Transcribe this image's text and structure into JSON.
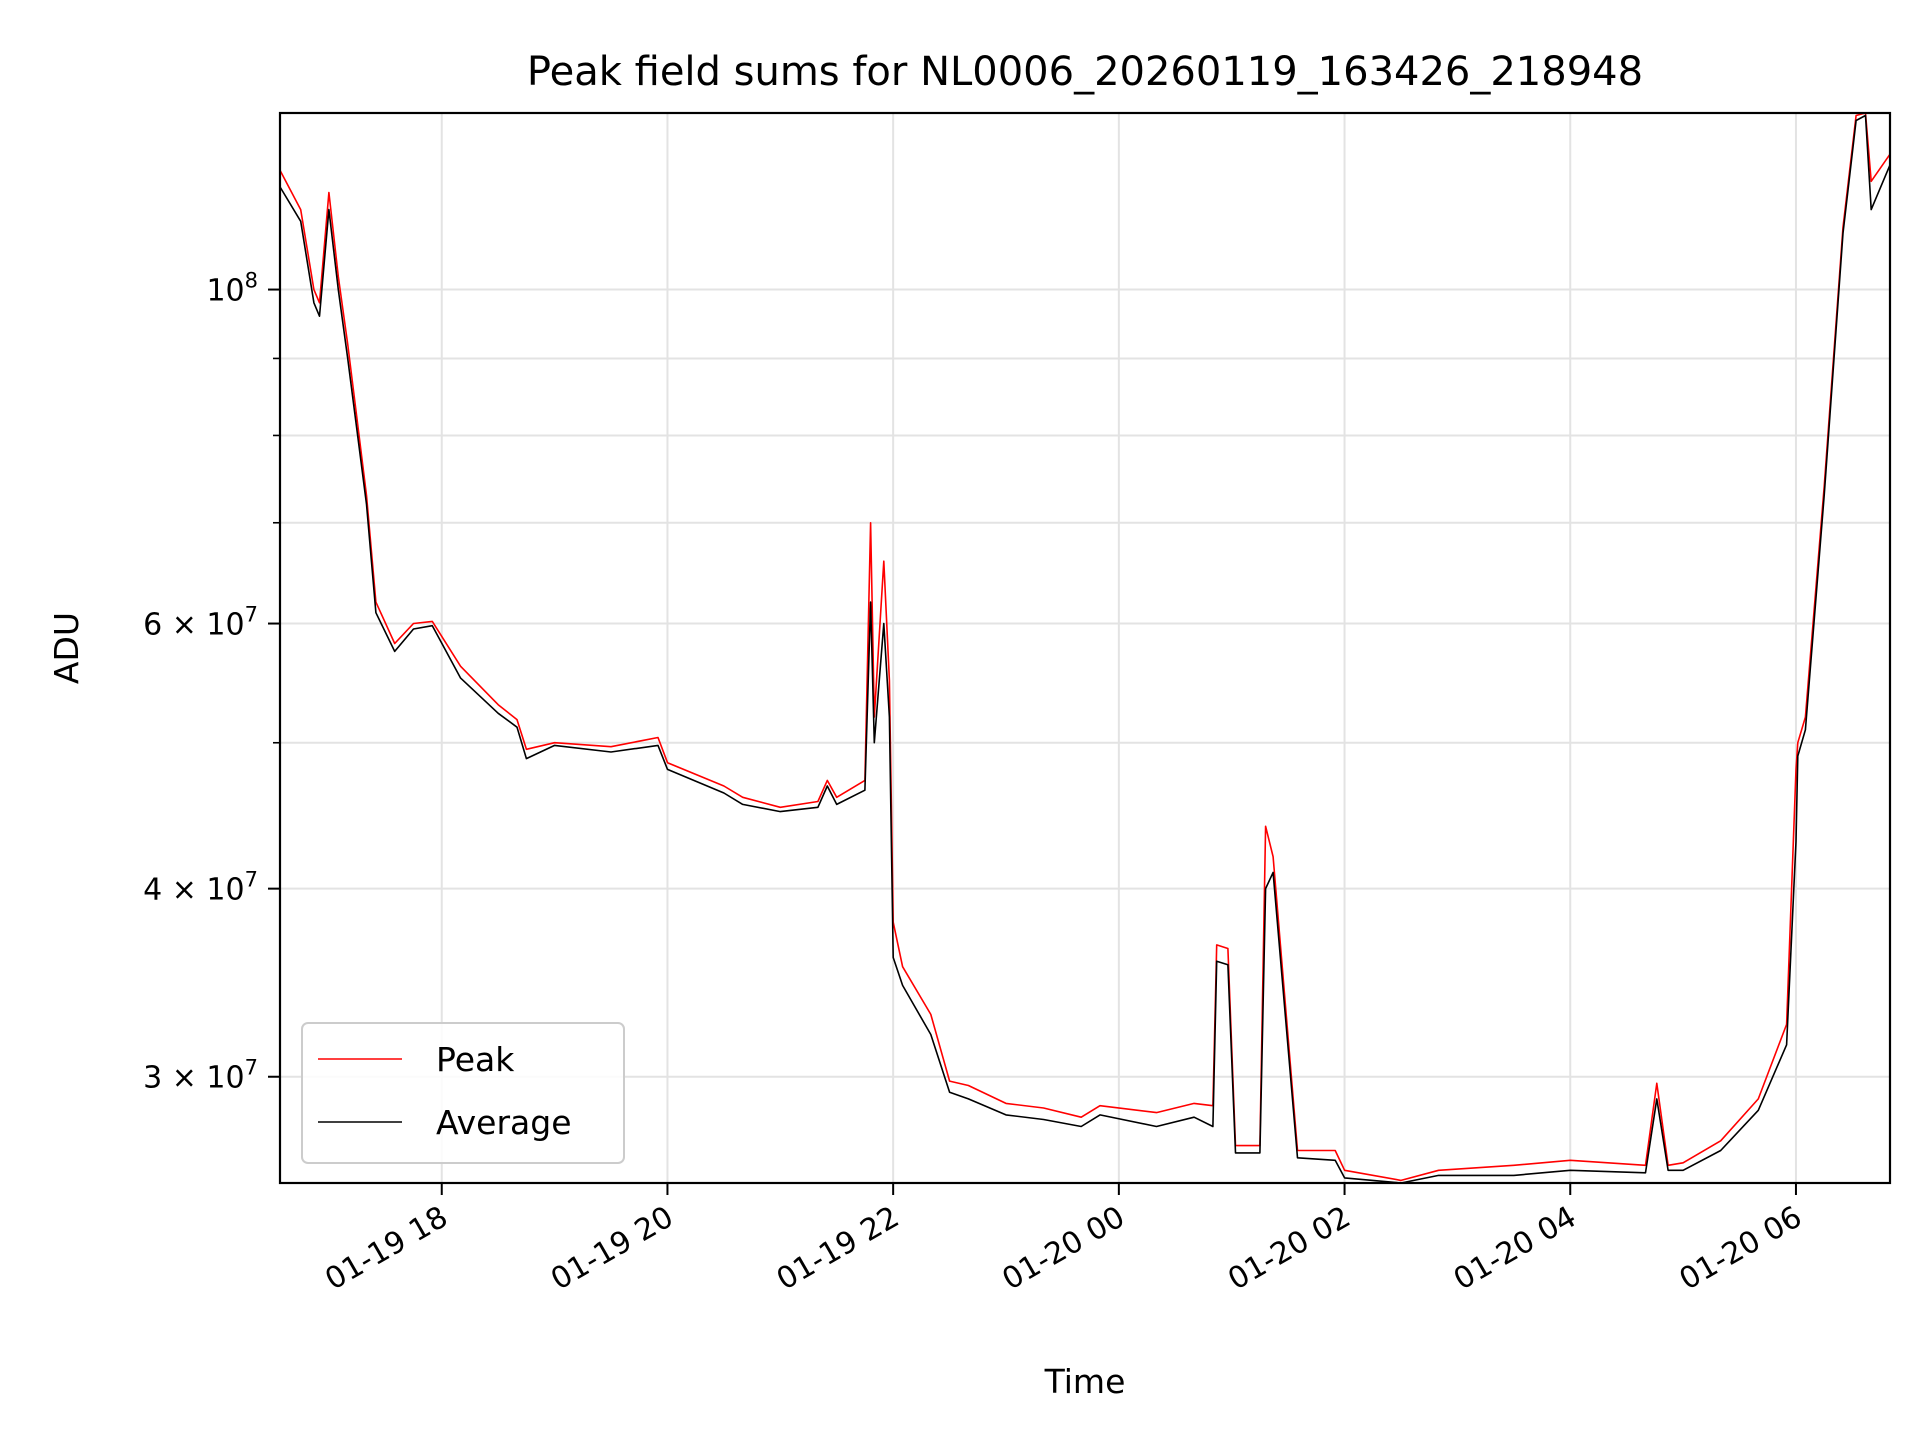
{
  "chart_data": {
    "type": "line",
    "title": "Peak field sums for NL0006_20260119_163426_218948",
    "xlabel": "Time",
    "ylabel": "ADU",
    "x_unit": "time (YYYY-MM-DD HH:MM)",
    "yscale": "log",
    "ylim": [
      25500000,
      131000000
    ],
    "xlim": [
      "2026-01-19 16:34",
      "2026-01-20 06:50"
    ],
    "grid": true,
    "legend_position": "lower-left",
    "x_ticks": [
      {
        "value": "2026-01-19 18:00",
        "label": "01-19 18"
      },
      {
        "value": "2026-01-19 20:00",
        "label": "01-19 20"
      },
      {
        "value": "2026-01-19 22:00",
        "label": "01-19 22"
      },
      {
        "value": "2026-01-20 00:00",
        "label": "01-20 00"
      },
      {
        "value": "2026-01-20 02:00",
        "label": "01-20 02"
      },
      {
        "value": "2026-01-20 04:00",
        "label": "01-20 04"
      },
      {
        "value": "2026-01-20 06:00",
        "label": "01-20 06"
      }
    ],
    "y_major_ticks": [
      {
        "value": 100000000,
        "base": "10",
        "exp": "8",
        "mant": ""
      },
      {
        "value": 60000000,
        "base": "10",
        "exp": "7",
        "mant": "6 × "
      },
      {
        "value": 40000000,
        "base": "10",
        "exp": "7",
        "mant": "4 × "
      },
      {
        "value": 30000000,
        "base": "10",
        "exp": "7",
        "mant": "3 × "
      }
    ],
    "y_minor_ticks": [
      50000000,
      70000000,
      80000000,
      90000000
    ],
    "series": [
      {
        "name": "Peak",
        "color": "#ff0000",
        "x": [
          "2026-01-19 16:34",
          "2026-01-19 16:45",
          "2026-01-19 16:52",
          "2026-01-19 16:55",
          "2026-01-19 17:00",
          "2026-01-19 17:05",
          "2026-01-19 17:10",
          "2026-01-19 17:20",
          "2026-01-19 17:25",
          "2026-01-19 17:35",
          "2026-01-19 17:45",
          "2026-01-19 17:55",
          "2026-01-19 18:10",
          "2026-01-19 18:30",
          "2026-01-19 18:40",
          "2026-01-19 18:45",
          "2026-01-19 19:00",
          "2026-01-19 19:30",
          "2026-01-19 19:55",
          "2026-01-19 20:00",
          "2026-01-19 20:30",
          "2026-01-19 20:40",
          "2026-01-19 21:00",
          "2026-01-19 21:20",
          "2026-01-19 21:25",
          "2026-01-19 21:30",
          "2026-01-19 21:45",
          "2026-01-19 21:48",
          "2026-01-19 21:50",
          "2026-01-19 21:55",
          "2026-01-19 21:58",
          "2026-01-19 22:00",
          "2026-01-19 22:05",
          "2026-01-19 22:20",
          "2026-01-19 22:30",
          "2026-01-19 22:40",
          "2026-01-19 23:00",
          "2026-01-19 23:20",
          "2026-01-19 23:40",
          "2026-01-19 23:50",
          "2026-01-20 00:20",
          "2026-01-20 00:40",
          "2026-01-20 00:50",
          "2026-01-20 00:52",
          "2026-01-20 00:58",
          "2026-01-20 01:02",
          "2026-01-20 01:15",
          "2026-01-20 01:18",
          "2026-01-20 01:22",
          "2026-01-20 01:35",
          "2026-01-20 01:55",
          "2026-01-20 02:00",
          "2026-01-20 02:30",
          "2026-01-20 02:50",
          "2026-01-20 03:30",
          "2026-01-20 04:00",
          "2026-01-20 04:40",
          "2026-01-20 04:46",
          "2026-01-20 04:52",
          "2026-01-20 05:00",
          "2026-01-20 05:20",
          "2026-01-20 05:40",
          "2026-01-20 05:55",
          "2026-01-20 06:00",
          "2026-01-20 06:01",
          "2026-01-20 06:05",
          "2026-01-20 06:15",
          "2026-01-20 06:25",
          "2026-01-20 06:32",
          "2026-01-20 06:37",
          "2026-01-20 06:40",
          "2026-01-20 06:50"
        ],
        "values": [
          120000000,
          113000000,
          100000000,
          98000000,
          116000000,
          102000000,
          92000000,
          73000000,
          62000000,
          58200000,
          60000000,
          60200000,
          56200000,
          53000000,
          51800000,
          49500000,
          50000000,
          49700000,
          50400000,
          48500000,
          46800000,
          46000000,
          45300000,
          45700000,
          47200000,
          46000000,
          47200000,
          70000000,
          52000000,
          66000000,
          55000000,
          38000000,
          35500000,
          33000000,
          29800000,
          29600000,
          28800000,
          28600000,
          28200000,
          28700000,
          28400000,
          28800000,
          28700000,
          36700000,
          36500000,
          27000000,
          27000000,
          44000000,
          42000000,
          26800000,
          26800000,
          26000000,
          25600000,
          26000000,
          26200000,
          26400000,
          26200000,
          29700000,
          26200000,
          26300000,
          27200000,
          29000000,
          32500000,
          48000000,
          50000000,
          52000000,
          74000000,
          110000000,
          130500000,
          131000000,
          118000000,
          123000000
        ]
      },
      {
        "name": "Average",
        "color": "#000000",
        "x": [
          "2026-01-19 16:34",
          "2026-01-19 16:45",
          "2026-01-19 16:52",
          "2026-01-19 16:55",
          "2026-01-19 17:00",
          "2026-01-19 17:05",
          "2026-01-19 17:10",
          "2026-01-19 17:20",
          "2026-01-19 17:25",
          "2026-01-19 17:35",
          "2026-01-19 17:45",
          "2026-01-19 17:55",
          "2026-01-19 18:10",
          "2026-01-19 18:30",
          "2026-01-19 18:40",
          "2026-01-19 18:45",
          "2026-01-19 19:00",
          "2026-01-19 19:30",
          "2026-01-19 19:55",
          "2026-01-19 20:00",
          "2026-01-19 20:30",
          "2026-01-19 20:40",
          "2026-01-19 21:00",
          "2026-01-19 21:20",
          "2026-01-19 21:25",
          "2026-01-19 21:30",
          "2026-01-19 21:45",
          "2026-01-19 21:48",
          "2026-01-19 21:50",
          "2026-01-19 21:55",
          "2026-01-19 21:58",
          "2026-01-19 22:00",
          "2026-01-19 22:05",
          "2026-01-19 22:20",
          "2026-01-19 22:30",
          "2026-01-19 22:40",
          "2026-01-19 23:00",
          "2026-01-19 23:20",
          "2026-01-19 23:40",
          "2026-01-19 23:50",
          "2026-01-20 00:20",
          "2026-01-20 00:40",
          "2026-01-20 00:50",
          "2026-01-20 00:52",
          "2026-01-20 00:58",
          "2026-01-20 01:02",
          "2026-01-20 01:15",
          "2026-01-20 01:18",
          "2026-01-20 01:22",
          "2026-01-20 01:35",
          "2026-01-20 01:55",
          "2026-01-20 02:00",
          "2026-01-20 02:30",
          "2026-01-20 02:50",
          "2026-01-20 03:30",
          "2026-01-20 04:00",
          "2026-01-20 04:40",
          "2026-01-20 04:46",
          "2026-01-20 04:52",
          "2026-01-20 05:00",
          "2026-01-20 05:20",
          "2026-01-20 05:40",
          "2026-01-20 05:55",
          "2026-01-20 06:00",
          "2026-01-20 06:01",
          "2026-01-20 06:05",
          "2026-01-20 06:15",
          "2026-01-20 06:25",
          "2026-01-20 06:32",
          "2026-01-20 06:37",
          "2026-01-20 06:40",
          "2026-01-20 06:50"
        ],
        "values": [
          117000000,
          111000000,
          98000000,
          96000000,
          113000000,
          100000000,
          90000000,
          72000000,
          61000000,
          57500000,
          59500000,
          59800000,
          55200000,
          52300000,
          51200000,
          48800000,
          49800000,
          49300000,
          49800000,
          48000000,
          46300000,
          45500000,
          45000000,
          45300000,
          46800000,
          45500000,
          46500000,
          62000000,
          50000000,
          60000000,
          52000000,
          36000000,
          34500000,
          32000000,
          29300000,
          29000000,
          28300000,
          28100000,
          27800000,
          28300000,
          27800000,
          28200000,
          27800000,
          35800000,
          35600000,
          26700000,
          26700000,
          40000000,
          41000000,
          26500000,
          26400000,
          25700000,
          25500000,
          25800000,
          25800000,
          26000000,
          25900000,
          29000000,
          26000000,
          26000000,
          26800000,
          28500000,
          31500000,
          43000000,
          49000000,
          51000000,
          73000000,
          109000000,
          129500000,
          130500000,
          113000000,
          121000000
        ]
      }
    ]
  }
}
